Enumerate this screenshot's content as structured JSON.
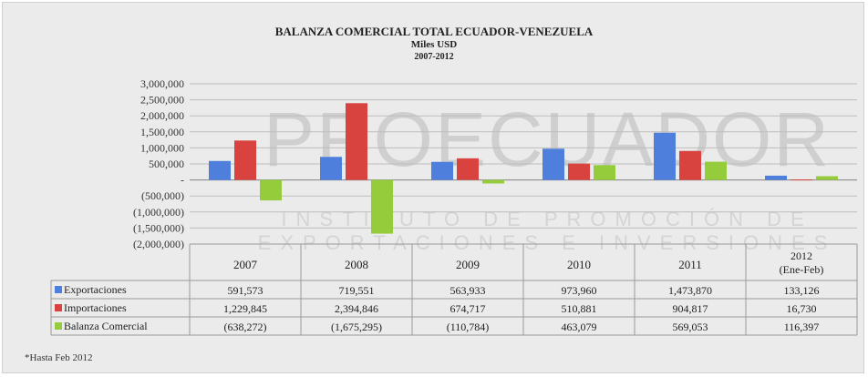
{
  "chart_data": {
    "type": "bar",
    "title": "BALANZA COMERCIAL  TOTAL ECUADOR-VENEZUELA",
    "subtitle": "Miles USD",
    "period": "2007-2012",
    "categories": [
      "2007",
      "2008",
      "2009",
      "2010",
      "2011",
      "2012\n(Ene-Feb)"
    ],
    "series": [
      {
        "name": "Exportaciones",
        "color": "#4f7fdc",
        "values": [
          591573,
          719551,
          563933,
          973960,
          1473870,
          133126
        ],
        "labels": [
          "591,573",
          "719,551",
          "563,933",
          "973,960",
          "1,473,870",
          "133,126"
        ]
      },
      {
        "name": "Importaciones",
        "color": "#d9433f",
        "values": [
          1229845,
          2394846,
          674717,
          510881,
          904817,
          16730
        ],
        "labels": [
          "1,229,845",
          "2,394,846",
          "674,717",
          "510,881",
          "904,817",
          "16,730"
        ]
      },
      {
        "name": "Balanza Comercial",
        "color": "#94cc3c",
        "values": [
          -638272,
          -1675295,
          -110784,
          463079,
          569053,
          116397
        ],
        "labels": [
          "(638,272)",
          "(1,675,295)",
          "(110,784)",
          "463,079",
          "569,053",
          "116,397"
        ]
      }
    ],
    "yticks": [
      3000000,
      2500000,
      2000000,
      1500000,
      1000000,
      500000,
      0,
      -500000,
      -1000000,
      -1500000,
      -2000000
    ],
    "ytick_labels": [
      "3,000,000",
      "2,500,000",
      "2,000,000",
      "1,500,000",
      "1,000,000",
      "500,000",
      "-",
      "(500,000)",
      "(1,000,000)",
      "(1,500,000)",
      "(2,000,000)"
    ],
    "ylim": [
      -2000000,
      3000000
    ],
    "grid": true,
    "legend": "data-table"
  },
  "watermark": {
    "brand": "PROECUADOR",
    "tagline_1": "INSTITUTO DE PROMOCIÓN DE",
    "tagline_2": "EXPORTACIONES E INVERSIONES"
  },
  "footnote": "*Hasta Feb 2012"
}
